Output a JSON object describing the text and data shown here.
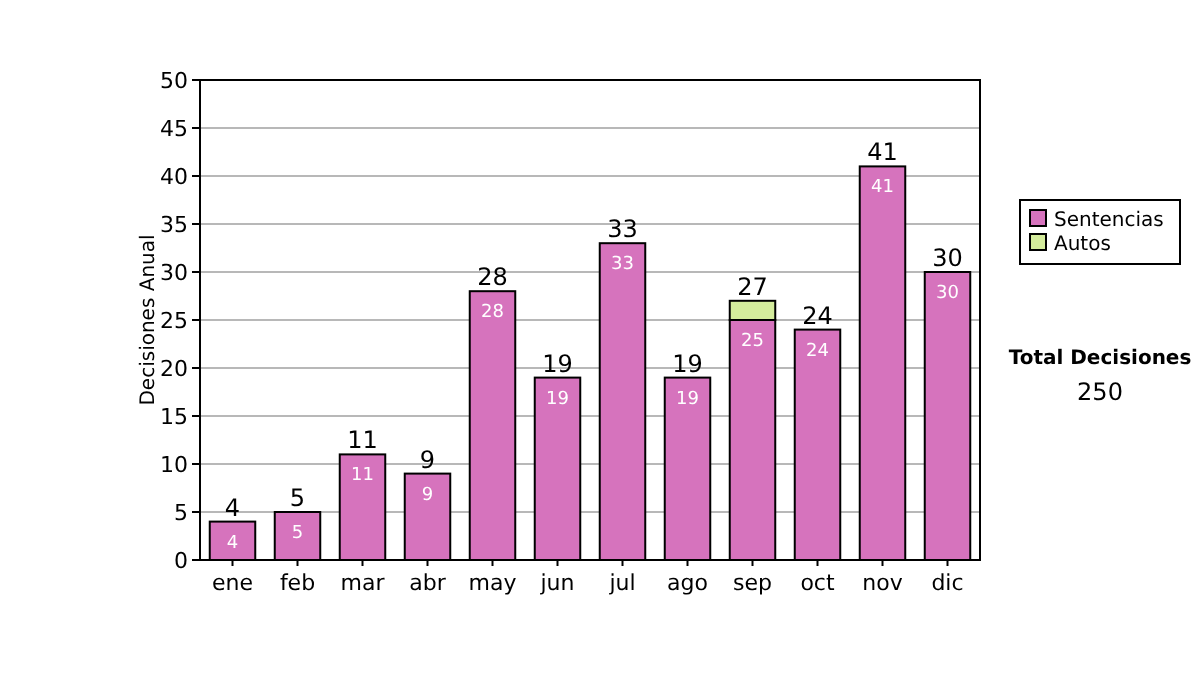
{
  "chart_data": {
    "type": "bar",
    "stacked": true,
    "ylabel": "Decisiones Anual",
    "categories": [
      "ene",
      "feb",
      "mar",
      "abr",
      "may",
      "jun",
      "jul",
      "ago",
      "sep",
      "oct",
      "nov",
      "dic"
    ],
    "series": [
      {
        "name": "Sentencias",
        "color": "#d673bd",
        "values": [
          4,
          5,
          11,
          9,
          28,
          19,
          33,
          19,
          25,
          24,
          41,
          30
        ],
        "value_labels": [
          "4",
          "5",
          "11",
          "9",
          "28",
          "19",
          "33",
          "19",
          "25",
          "24",
          "41",
          "30"
        ]
      },
      {
        "name": "Autos",
        "color": "#d4ec9c",
        "values": [
          0,
          0,
          0,
          0,
          0,
          0,
          0,
          0,
          2,
          0,
          0,
          0
        ]
      }
    ],
    "totals": [
      "4",
      "5",
      "11",
      "9",
      "28",
      "19",
      "33",
      "19",
      "27",
      "24",
      "41",
      "30"
    ],
    "ylim": [
      0,
      50
    ],
    "yticks": [
      0,
      5,
      10,
      15,
      20,
      25,
      30,
      35,
      40,
      45,
      50
    ],
    "grid": "y",
    "legend": "right",
    "annotations": [
      "Total Decisiones",
      "250"
    ]
  }
}
